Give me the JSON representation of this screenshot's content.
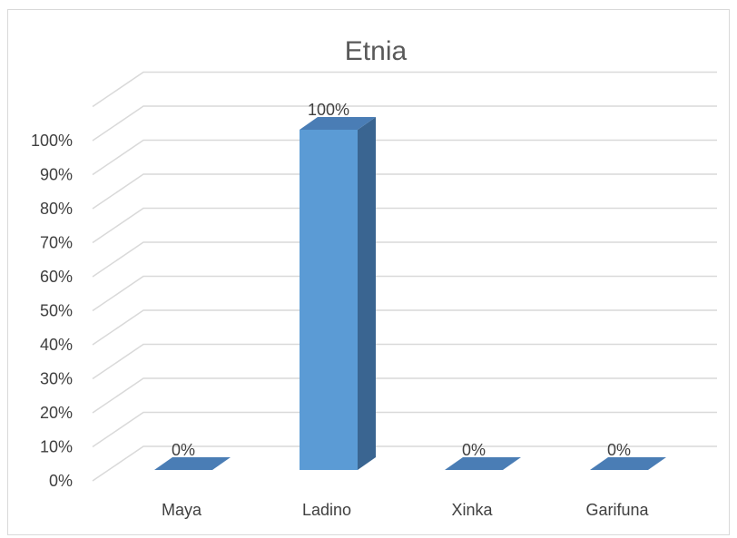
{
  "chart_data": {
    "type": "bar",
    "title": "Etnia",
    "categories": [
      "Maya",
      "Ladino",
      "Xinka",
      "Garifuna"
    ],
    "values": [
      0,
      100,
      0,
      0
    ],
    "data_labels": [
      "0%",
      "100%",
      "0%",
      "0%"
    ],
    "ylim": [
      0,
      100
    ],
    "y_ticks": [
      "0%",
      "10%",
      "20%",
      "30%",
      "40%",
      "50%",
      "60%",
      "70%",
      "80%",
      "90%",
      "100%"
    ],
    "xlabel": "",
    "ylabel": "",
    "grid": true,
    "legend": "none",
    "style": "3d-column",
    "colors": {
      "bar_front": "#5b9bd5",
      "bar_side": "#3a6591",
      "bar_top": "#4a7db5",
      "grid": "#d9d9d9"
    }
  }
}
